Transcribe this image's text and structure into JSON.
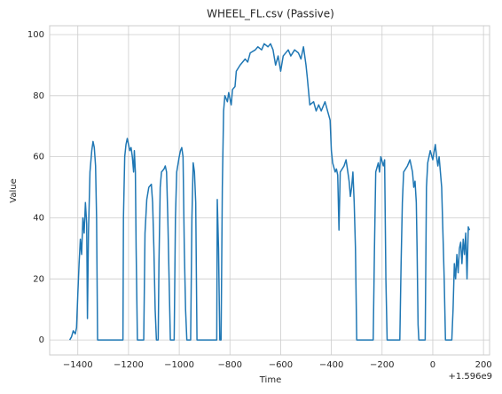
{
  "chart_data": {
    "type": "line",
    "title": "WHEEL_FL.csv (Passive)",
    "xlabel": "Time",
    "ylabel": "Value",
    "x_offset_label": "+1.596e9",
    "color": "#1f77b4",
    "grid": true,
    "x": [
      -1432,
      -1425,
      -1418,
      -1410,
      -1405,
      -1400,
      -1395,
      -1390,
      -1385,
      -1380,
      -1375,
      -1370,
      -1365,
      -1362,
      -1358,
      -1352,
      -1345,
      -1340,
      -1335,
      -1330,
      -1326,
      -1322,
      -1300,
      -1250,
      -1222,
      -1220,
      -1215,
      -1210,
      -1205,
      -1200,
      -1195,
      -1190,
      -1185,
      -1180,
      -1177,
      -1173,
      -1170,
      -1165,
      -1150,
      -1140,
      -1135,
      -1128,
      -1120,
      -1110,
      -1105,
      -1100,
      -1095,
      -1090,
      -1083,
      -1080,
      -1075,
      -1070,
      -1060,
      -1055,
      -1050,
      -1045,
      -1040,
      -1035,
      -1020,
      -1015,
      -1010,
      -1000,
      -995,
      -990,
      -985,
      -980,
      -975,
      -970,
      -955,
      -950,
      -945,
      -940,
      -935,
      -930,
      -900,
      -860,
      -852,
      -850,
      -845,
      -840,
      -835,
      -830,
      -825,
      -820,
      -810,
      -805,
      -800,
      -795,
      -790,
      -780,
      -775,
      -760,
      -740,
      -730,
      -720,
      -700,
      -690,
      -675,
      -665,
      -650,
      -640,
      -630,
      -620,
      -610,
      -600,
      -590,
      -570,
      -560,
      -545,
      -530,
      -520,
      -510,
      -500,
      -495,
      -485,
      -470,
      -460,
      -450,
      -440,
      -425,
      -415,
      -405,
      -400,
      -395,
      -385,
      -380,
      -375,
      -370,
      -365,
      -350,
      -342,
      -335,
      -330,
      -325,
      -320,
      -315,
      -310,
      -305,
      -300,
      -270,
      -235,
      -230,
      -225,
      -215,
      -210,
      -205,
      -195,
      -190,
      -185,
      -180,
      -150,
      -130,
      -125,
      -120,
      -115,
      -100,
      -90,
      -80,
      -75,
      -70,
      -65,
      -62,
      -58,
      -55,
      -40,
      -30,
      -25,
      -20,
      -10,
      0,
      10,
      15,
      20,
      25,
      30,
      35,
      45,
      50,
      75,
      80,
      85,
      90,
      95,
      100,
      105,
      110,
      115,
      120,
      125,
      130,
      135,
      140,
      145
    ],
    "values": [
      0,
      1,
      3,
      2,
      4,
      15,
      25,
      33,
      28,
      40,
      35,
      45,
      38,
      7,
      35,
      55,
      62,
      65,
      63,
      57,
      40,
      0,
      0,
      0,
      0,
      40,
      60,
      64,
      66,
      64,
      62,
      63,
      60,
      55,
      62,
      55,
      30,
      0,
      0,
      0,
      35,
      46,
      50,
      51,
      45,
      30,
      10,
      0,
      0,
      25,
      50,
      55,
      56,
      57,
      55,
      40,
      20,
      0,
      0,
      40,
      55,
      60,
      62,
      63,
      60,
      30,
      10,
      0,
      0,
      40,
      58,
      55,
      45,
      0,
      0,
      0,
      0,
      46,
      30,
      0,
      0,
      50,
      75,
      80,
      78,
      81,
      79,
      77,
      82,
      83,
      88,
      90,
      92,
      91,
      94,
      95,
      96,
      95,
      97,
      96,
      97,
      95,
      90,
      93,
      88,
      93,
      95,
      93,
      95,
      94,
      92,
      96,
      90,
      86,
      77,
      78,
      75,
      77,
      75,
      78,
      75,
      72,
      62,
      58,
      55,
      56,
      54,
      36,
      55,
      57,
      59,
      55,
      52,
      47,
      50,
      55,
      45,
      30,
      0,
      0,
      0,
      30,
      55,
      58,
      55,
      60,
      57,
      59,
      20,
      0,
      0,
      0,
      25,
      45,
      55,
      57,
      59,
      55,
      50,
      52,
      45,
      30,
      5,
      0,
      0,
      0,
      50,
      58,
      62,
      59,
      64,
      60,
      57,
      60,
      55,
      50,
      20,
      0,
      0,
      10,
      25,
      20,
      28,
      22,
      30,
      32,
      25,
      33,
      28,
      35,
      20,
      37,
      36
    ],
    "xlim": [
      -1511,
      224
    ],
    "xticks": [
      {
        "value": -1400,
        "label": "−1400"
      },
      {
        "value": -1200,
        "label": "−1200"
      },
      {
        "value": -1000,
        "label": "−1000"
      },
      {
        "value": -800,
        "label": "−800"
      },
      {
        "value": -600,
        "label": "−600"
      },
      {
        "value": -400,
        "label": "−400"
      },
      {
        "value": -200,
        "label": "−200"
      },
      0,
      200
    ],
    "ylim": [
      -4.9,
      102.9
    ],
    "yticks": [
      0,
      20,
      40,
      60,
      80,
      100
    ]
  }
}
